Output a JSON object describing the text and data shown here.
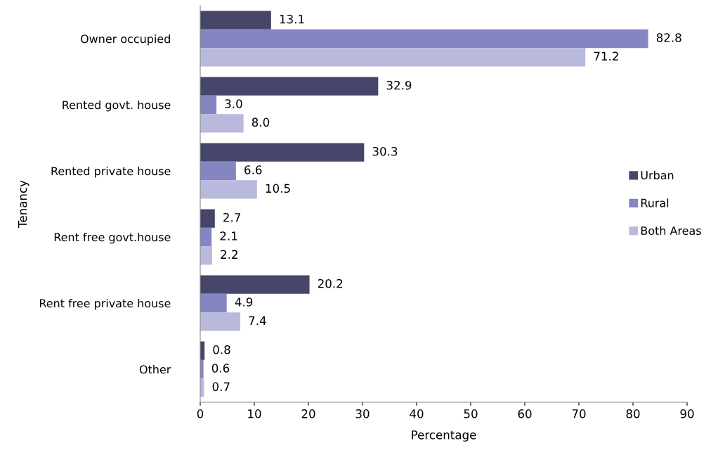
{
  "chart_data": {
    "type": "bar",
    "orientation": "horizontal",
    "xlabel": "Percentage",
    "ylabel": "Tenancy",
    "categories": [
      "Owner occupied",
      "Rented govt. house",
      "Rented private house",
      "Rent free govt.house",
      "Rent free private house",
      "Other"
    ],
    "series": [
      {
        "name": "Urban",
        "color": "#46466b",
        "values": [
          13.1,
          32.9,
          30.3,
          2.7,
          20.2,
          0.8
        ],
        "value_labels": [
          "13.1",
          "32.9",
          "30.3",
          "2.7",
          "20.2",
          "0.8"
        ]
      },
      {
        "name": "Rural",
        "color": "#8585c2",
        "values": [
          82.8,
          3,
          6.6,
          2.1,
          4.9,
          0.6
        ],
        "value_labels": [
          "82.8",
          "3.0",
          "6.6",
          "2.1",
          "4.9",
          "0.6"
        ]
      },
      {
        "name": "Both Areas",
        "color": "#b9b9dd",
        "values": [
          71.2,
          8,
          10.5,
          2.2,
          7.4,
          0.7
        ],
        "value_labels": [
          "71.2",
          "8.0",
          "10.5",
          "2.2",
          "7.4",
          "0.7"
        ]
      }
    ],
    "xlim": [
      0,
      90
    ],
    "xticks": [
      0,
      10,
      20,
      30,
      40,
      50,
      60,
      70,
      80,
      90
    ],
    "legend": "right",
    "grid": false
  }
}
